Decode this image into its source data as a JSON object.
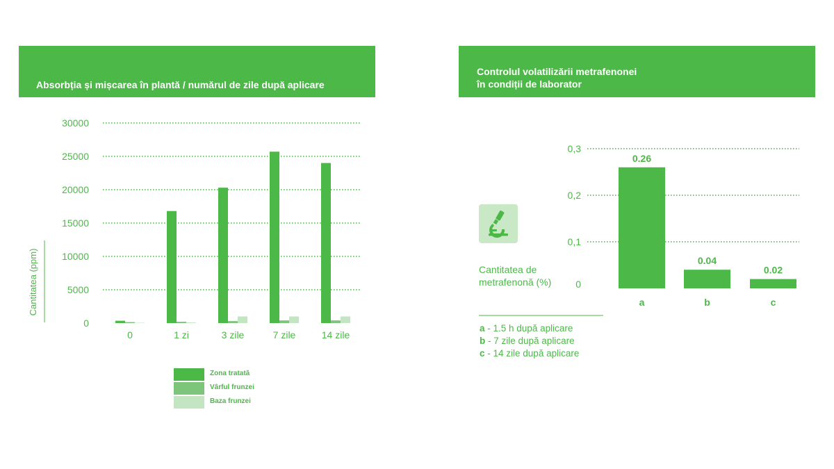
{
  "chart_data": [
    {
      "type": "bar",
      "title": "Absorbția și mișcarea în plantă / numărul de zile după aplicare",
      "ylabel": "Cantitatea (ppm)",
      "xlabel": "",
      "ylim": [
        0,
        30000
      ],
      "yticks": [
        "0",
        "5000",
        "10000",
        "15000",
        "20000",
        "25000",
        "30000"
      ],
      "ytick_values": [
        0,
        5000,
        10000,
        15000,
        20000,
        25000,
        30000
      ],
      "grid": "dotted horizontal",
      "legend_position": "bottom",
      "categories": [
        "0",
        "1 zi",
        "3 zile",
        "7 zile",
        "14 zile"
      ],
      "series": [
        {
          "name": "Zona tratată",
          "color": "#4cb848",
          "values": [
            350,
            16800,
            20300,
            25700,
            24000
          ]
        },
        {
          "name": "Vârful frunzei",
          "color": "#7cc57a",
          "values": [
            150,
            200,
            300,
            400,
            400
          ]
        },
        {
          "name": "Baza frunzei",
          "color": "#c4e5c2",
          "values": [
            50,
            100,
            1000,
            1000,
            1000
          ]
        }
      ]
    },
    {
      "type": "bar",
      "title": "Controlul volatilizării metrafenonei în condiții de laborator",
      "title_lines": [
        "Controlul volatilizării metrafenonei",
        "în condiții de laborator"
      ],
      "ylabel_lines": [
        "Cantitatea de",
        "metrafenonă (%)"
      ],
      "ylim": [
        0,
        0.3
      ],
      "yticks": [
        "0",
        "0,1",
        "0,2",
        "0,3"
      ],
      "ytick_values": [
        0,
        0.1,
        0.2,
        0.3
      ],
      "grid": "dotted horizontal",
      "categories": [
        "a",
        "b",
        "c"
      ],
      "values": [
        0.26,
        0.04,
        0.02
      ],
      "data_labels": [
        "0.26",
        "0.04",
        "0.02"
      ],
      "color": "#4cb848",
      "notes": [
        {
          "key": "a",
          "text": "1.5 h după aplicare"
        },
        {
          "key": "b",
          "text": "7 zile după aplicare"
        },
        {
          "key": "c",
          "text": "14 zile după aplicare"
        }
      ],
      "icon": "microscope-icon"
    }
  ]
}
